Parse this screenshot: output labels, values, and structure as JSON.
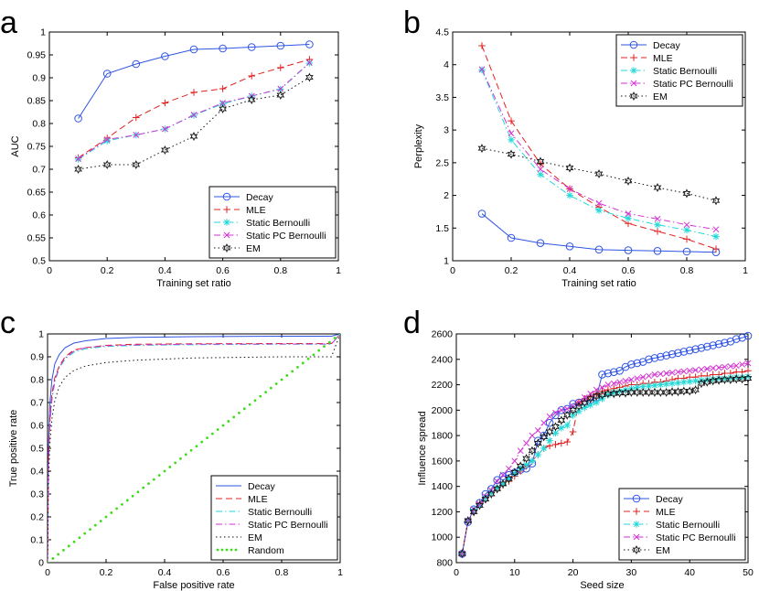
{
  "chart_data": [
    {
      "panel": "a",
      "type": "line",
      "title": "",
      "xlabel": "Training set ratio",
      "ylabel": "AUC",
      "xlim": [
        0,
        1
      ],
      "ylim": [
        0.5,
        1
      ],
      "xticks": [
        0,
        0.2,
        0.4,
        0.6,
        0.8,
        1
      ],
      "xtick_labels": [
        "0",
        "0.2",
        "0.4",
        "0.6",
        "0.8",
        "1"
      ],
      "yticks": [
        0.5,
        0.55,
        0.6,
        0.65,
        0.7,
        0.75,
        0.8,
        0.85,
        0.9,
        0.95,
        1
      ],
      "ytick_labels": [
        "0.5",
        "0.55",
        "0.6",
        "0.65",
        "0.7",
        "0.75",
        "0.8",
        "0.85",
        "0.9",
        "0.95",
        "1"
      ],
      "legend_position": "bottom-right",
      "x": [
        0.1,
        0.2,
        0.3,
        0.4,
        0.5,
        0.6,
        0.7,
        0.8,
        0.9
      ],
      "series": [
        {
          "name": "Decay",
          "color": "#2f55e3",
          "dash": "solid",
          "marker": "circle",
          "values": [
            0.811,
            0.909,
            0.93,
            0.947,
            0.962,
            0.964,
            0.967,
            0.97,
            0.973
          ]
        },
        {
          "name": "MLE",
          "color": "#e02020",
          "dash": "dashed",
          "marker": "plus",
          "values": [
            0.725,
            0.768,
            0.813,
            0.845,
            0.868,
            0.876,
            0.904,
            0.922,
            0.94
          ]
        },
        {
          "name": "Static Bernoulli",
          "color": "#22d8d8",
          "dash": "dashdot",
          "marker": "asterisk",
          "values": [
            0.722,
            0.762,
            0.775,
            0.788,
            0.818,
            0.843,
            0.86,
            0.875,
            0.932
          ]
        },
        {
          "name": "Static PC Bernoulli",
          "color": "#d433d4",
          "dash": "dashdot",
          "marker": "cross",
          "values": [
            0.723,
            0.765,
            0.775,
            0.788,
            0.819,
            0.845,
            0.86,
            0.876,
            0.933
          ]
        },
        {
          "name": "EM",
          "color": "#111111",
          "dash": "dotted",
          "marker": "hexagram",
          "values": [
            0.7,
            0.71,
            0.71,
            0.742,
            0.772,
            0.832,
            0.852,
            0.862,
            0.901
          ]
        }
      ]
    },
    {
      "panel": "b",
      "type": "line",
      "title": "",
      "xlabel": "Training set ratio",
      "ylabel": "Perplexity",
      "xlim": [
        0,
        1
      ],
      "ylim": [
        1,
        4.5
      ],
      "xticks": [
        0,
        0.2,
        0.4,
        0.6,
        0.8,
        1
      ],
      "xtick_labels": [
        "0",
        "0.2",
        "0.4",
        "0.6",
        "0.8",
        "1"
      ],
      "yticks": [
        1,
        1.5,
        2,
        2.5,
        3,
        3.5,
        4,
        4.5
      ],
      "ytick_labels": [
        "1",
        "1.5",
        "2",
        "2.5",
        "3",
        "3.5",
        "4",
        "4.5"
      ],
      "legend_position": "top-right",
      "x": [
        0.1,
        0.2,
        0.3,
        0.4,
        0.5,
        0.6,
        0.7,
        0.8,
        0.9
      ],
      "series": [
        {
          "name": "Decay",
          "color": "#2f55e3",
          "dash": "solid",
          "marker": "circle",
          "values": [
            1.72,
            1.35,
            1.27,
            1.22,
            1.17,
            1.16,
            1.15,
            1.14,
            1.13
          ]
        },
        {
          "name": "MLE",
          "color": "#e02020",
          "dash": "dashed",
          "marker": "plus",
          "values": [
            4.29,
            3.14,
            2.48,
            2.1,
            1.82,
            1.57,
            1.45,
            1.33,
            1.18
          ]
        },
        {
          "name": "Static Bernoulli",
          "color": "#22d8d8",
          "dash": "dashdot",
          "marker": "asterisk",
          "values": [
            3.92,
            2.85,
            2.32,
            2.0,
            1.77,
            1.65,
            1.55,
            1.47,
            1.37
          ]
        },
        {
          "name": "Static PC Bernoulli",
          "color": "#d433d4",
          "dash": "dashdot",
          "marker": "cross",
          "values": [
            3.93,
            2.95,
            2.4,
            2.1,
            1.88,
            1.72,
            1.64,
            1.55,
            1.48
          ]
        },
        {
          "name": "EM",
          "color": "#111111",
          "dash": "dotted",
          "marker": "hexagram",
          "values": [
            2.72,
            2.63,
            2.52,
            2.42,
            2.33,
            2.22,
            2.12,
            2.03,
            1.92
          ]
        }
      ]
    },
    {
      "panel": "c",
      "type": "line",
      "title": "",
      "xlabel": "False positive rate",
      "ylabel": "True positive rate",
      "xlim": [
        0,
        1
      ],
      "ylim": [
        0,
        1
      ],
      "xticks": [
        0,
        0.2,
        0.4,
        0.6,
        0.8,
        1
      ],
      "xtick_labels": [
        "0",
        "0.2",
        "0.4",
        "0.6",
        "0.8",
        "1"
      ],
      "yticks": [
        0,
        0.1,
        0.2,
        0.3,
        0.4,
        0.5,
        0.6,
        0.7,
        0.8,
        0.9,
        1
      ],
      "ytick_labels": [
        "0",
        "0.1",
        "0.2",
        "0.3",
        "0.4",
        "0.5",
        "0.6",
        "0.7",
        "0.8",
        "0.9",
        "1"
      ],
      "legend_position": "bottom-right",
      "series": [
        {
          "name": "Decay",
          "color": "#2f55e3",
          "dash": "solid",
          "marker": "none",
          "x": [
            0,
            0.003,
            0.008,
            0.015,
            0.025,
            0.04,
            0.06,
            0.09,
            0.13,
            0.2,
            0.3,
            0.5,
            0.8,
            0.97,
            1
          ],
          "y": [
            0,
            0.5,
            0.7,
            0.8,
            0.87,
            0.91,
            0.94,
            0.96,
            0.97,
            0.98,
            0.985,
            0.988,
            0.99,
            0.99,
            1
          ]
        },
        {
          "name": "MLE",
          "color": "#e02020",
          "dash": "dashed",
          "marker": "none",
          "x": [
            0,
            0.003,
            0.008,
            0.015,
            0.025,
            0.04,
            0.06,
            0.09,
            0.13,
            0.2,
            0.3,
            0.5,
            0.8,
            0.97,
            1
          ],
          "y": [
            0,
            0.45,
            0.63,
            0.74,
            0.81,
            0.86,
            0.9,
            0.93,
            0.94,
            0.95,
            0.955,
            0.957,
            0.958,
            0.958,
            1
          ]
        },
        {
          "name": "Static Bernoulli",
          "color": "#22d8d8",
          "dash": "dashdot",
          "marker": "none",
          "x": [
            0,
            0.003,
            0.008,
            0.015,
            0.025,
            0.04,
            0.06,
            0.09,
            0.13,
            0.2,
            0.3,
            0.5,
            0.8,
            0.97,
            1
          ],
          "y": [
            0,
            0.42,
            0.6,
            0.71,
            0.79,
            0.85,
            0.89,
            0.92,
            0.935,
            0.945,
            0.95,
            0.953,
            0.955,
            0.955,
            1
          ]
        },
        {
          "name": "Static PC Bernoulli",
          "color": "#d433d4",
          "dash": "dashdot",
          "marker": "none",
          "x": [
            0,
            0.003,
            0.008,
            0.015,
            0.025,
            0.04,
            0.06,
            0.09,
            0.13,
            0.2,
            0.3,
            0.5,
            0.8,
            0.97,
            1
          ],
          "y": [
            0,
            0.43,
            0.61,
            0.72,
            0.8,
            0.855,
            0.895,
            0.925,
            0.94,
            0.948,
            0.952,
            0.955,
            0.956,
            0.956,
            1
          ]
        },
        {
          "name": "EM",
          "color": "#111111",
          "dash": "dotted",
          "marker": "none",
          "x": [
            0,
            0.003,
            0.008,
            0.015,
            0.025,
            0.04,
            0.06,
            0.09,
            0.13,
            0.2,
            0.3,
            0.5,
            0.8,
            0.97,
            1
          ],
          "y": [
            0,
            0.35,
            0.52,
            0.63,
            0.71,
            0.77,
            0.81,
            0.84,
            0.86,
            0.875,
            0.885,
            0.895,
            0.9,
            0.9,
            1
          ]
        },
        {
          "name": "Random",
          "color": "#3ddc1a",
          "dash": "dotted",
          "marker": "dot",
          "x": [
            0,
            1
          ],
          "y": [
            0,
            1
          ]
        }
      ]
    },
    {
      "panel": "d",
      "type": "line",
      "title": "",
      "xlabel": "Seed size",
      "ylabel": "Influence spread",
      "xlim": [
        0,
        50
      ],
      "ylim": [
        800,
        2600
      ],
      "xticks": [
        0,
        10,
        20,
        30,
        40,
        50
      ],
      "xtick_labels": [
        "0",
        "10",
        "20",
        "30",
        "40",
        "50"
      ],
      "yticks": [
        800,
        1000,
        1200,
        1400,
        1600,
        1800,
        2000,
        2200,
        2400,
        2600
      ],
      "ytick_labels": [
        "800",
        "1000",
        "1200",
        "1400",
        "1600",
        "1800",
        "2000",
        "2200",
        "2400",
        "2600"
      ],
      "legend_position": "bottom-right",
      "x": [
        1,
        2,
        3,
        4,
        5,
        6,
        7,
        8,
        9,
        10,
        11,
        12,
        13,
        14,
        15,
        16,
        17,
        18,
        19,
        20,
        21,
        22,
        23,
        24,
        25,
        26,
        27,
        28,
        29,
        30,
        31,
        32,
        33,
        34,
        35,
        36,
        37,
        38,
        39,
        40,
        41,
        42,
        43,
        44,
        45,
        46,
        47,
        48,
        49,
        50
      ],
      "series": [
        {
          "name": "Decay",
          "color": "#2f55e3",
          "dash": "solid",
          "marker": "circle",
          "values": [
            870,
            1120,
            1220,
            1270,
            1340,
            1380,
            1450,
            1480,
            1490,
            1510,
            1530,
            1540,
            1580,
            1760,
            1800,
            1900,
            1960,
            2000,
            2010,
            2050,
            2060,
            2070,
            2080,
            2100,
            2280,
            2290,
            2300,
            2310,
            2340,
            2360,
            2370,
            2380,
            2400,
            2410,
            2420,
            2430,
            2440,
            2450,
            2460,
            2470,
            2480,
            2490,
            2500,
            2510,
            2520,
            2530,
            2540,
            2560,
            2570,
            2585
          ]
        },
        {
          "name": "MLE",
          "color": "#e02020",
          "dash": "dashed",
          "marker": "plus",
          "values": [
            870,
            1130,
            1210,
            1270,
            1310,
            1350,
            1380,
            1410,
            1440,
            1480,
            1520,
            1560,
            1600,
            1650,
            1700,
            1720,
            1730,
            1740,
            1750,
            1830,
            2060,
            2090,
            2110,
            2130,
            2150,
            2160,
            2170,
            2180,
            2190,
            2200,
            2200,
            2210,
            2210,
            2220,
            2220,
            2230,
            2240,
            2250,
            2250,
            2260,
            2260,
            2270,
            2270,
            2280,
            2280,
            2290,
            2290,
            2300,
            2300,
            2310
          ]
        },
        {
          "name": "Static Bernoulli",
          "color": "#22d8d8",
          "dash": "dashdot",
          "marker": "asterisk",
          "values": [
            870,
            1130,
            1220,
            1260,
            1310,
            1350,
            1390,
            1420,
            1460,
            1500,
            1540,
            1570,
            1600,
            1650,
            1700,
            1760,
            1820,
            1860,
            1880,
            1960,
            1990,
            2020,
            2040,
            2060,
            2090,
            2120,
            2140,
            2150,
            2160,
            2170,
            2180,
            2185,
            2190,
            2195,
            2200,
            2205,
            2210,
            2215,
            2220,
            2225,
            2230,
            2235,
            2240,
            2245,
            2250,
            2250,
            2255,
            2260,
            2260,
            2265
          ]
        },
        {
          "name": "Static PC Bernoulli",
          "color": "#d433d4",
          "dash": "dashdot",
          "marker": "cross",
          "values": [
            870,
            1130,
            1220,
            1260,
            1320,
            1370,
            1440,
            1490,
            1540,
            1600,
            1680,
            1740,
            1800,
            1840,
            1900,
            1950,
            1980,
            2000,
            2010,
            2030,
            2060,
            2100,
            2130,
            2160,
            2180,
            2200,
            2210,
            2220,
            2230,
            2240,
            2250,
            2260,
            2270,
            2280,
            2285,
            2290,
            2295,
            2300,
            2305,
            2310,
            2315,
            2320,
            2325,
            2330,
            2335,
            2340,
            2345,
            2350,
            2360,
            2370
          ]
        },
        {
          "name": "EM",
          "color": "#111111",
          "dash": "dotted",
          "marker": "hexagram",
          "values": [
            870,
            1130,
            1200,
            1250,
            1300,
            1340,
            1380,
            1420,
            1460,
            1510,
            1560,
            1620,
            1680,
            1740,
            1790,
            1830,
            1870,
            1920,
            1960,
            2000,
            2030,
            2060,
            2090,
            2110,
            2120,
            2130,
            2130,
            2135,
            2135,
            2140,
            2140,
            2140,
            2140,
            2140,
            2140,
            2140,
            2145,
            2145,
            2150,
            2150,
            2160,
            2210,
            2220,
            2230,
            2235,
            2240,
            2240,
            2245,
            2245,
            2250
          ]
        }
      ]
    }
  ]
}
